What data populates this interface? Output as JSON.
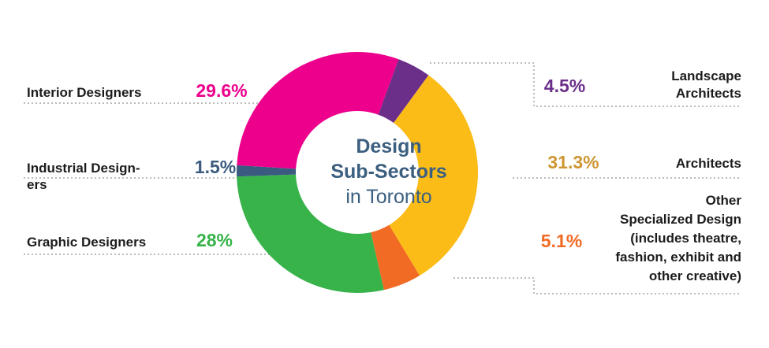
{
  "chart_data": {
    "type": "pie",
    "variant": "donut",
    "center_title": [
      "Design",
      "Sub-Sectors"
    ],
    "center_subtitle": "in Toronto",
    "slices": [
      {
        "label": [
          "Landscape",
          "Architects"
        ],
        "value": 4.5,
        "display": "4.5%",
        "color": "#6b2f8a"
      },
      {
        "label": [
          "Architects"
        ],
        "value": 31.3,
        "display": "31.3%",
        "color": "#fbbc18"
      },
      {
        "label": [
          "Other",
          "Specialized Design",
          "(includes theatre,",
          "fashion, exhibit and",
          "other creative)"
        ],
        "value": 5.1,
        "display": "5.1%",
        "color": "#f26b24"
      },
      {
        "label": [
          "Graphic Designers"
        ],
        "value": 28,
        "display": "28%",
        "color": "#37b34a"
      },
      {
        "label": [
          "Industrial Design-",
          "ers"
        ],
        "value": 1.5,
        "display": "1.5%",
        "color": "#3a5a80"
      },
      {
        "label": [
          "Interior Designers"
        ],
        "value": 29.6,
        "display": "29.6%",
        "color": "#ec008c"
      }
    ],
    "percent_colors": {
      "Landscape Architects": "#6b2f8a",
      "Architects": "#cf9632",
      "Other Specialized Design": "#f26b24",
      "Graphic Designers": "#37b34a",
      "Industrial Designers": "#3a5a80",
      "Interior Designers": "#ec008c"
    }
  }
}
